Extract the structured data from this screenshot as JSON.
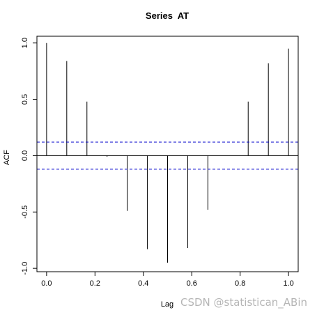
{
  "chart_data": {
    "type": "bar",
    "title": "Series  AT",
    "xlabel": "Lag",
    "ylabel": "ACF",
    "xlim": [
      -0.04,
      1.04
    ],
    "ylim": [
      -1.03,
      1.06
    ],
    "x_ticks": [
      0.0,
      0.2,
      0.4,
      0.6,
      0.8,
      1.0
    ],
    "x_tick_labels": [
      "0.0",
      "0.2",
      "0.4",
      "0.6",
      "0.8",
      "1.0"
    ],
    "y_ticks": [
      1.0,
      0.5,
      0.0,
      -0.5,
      -1.0
    ],
    "y_tick_labels": [
      "1.0",
      "0.5",
      "0.0",
      "-0.5",
      "-1.0"
    ],
    "lags": [
      0.0,
      0.0833,
      0.1667,
      0.25,
      0.3333,
      0.4167,
      0.5,
      0.5833,
      0.6667,
      0.75,
      0.8333,
      0.9167,
      1.0
    ],
    "acf": [
      1.0,
      0.84,
      0.48,
      -0.01,
      -0.49,
      -0.83,
      -0.95,
      -0.82,
      -0.48,
      0.0,
      0.48,
      0.82,
      0.95
    ],
    "confidence_bound": 0.12,
    "grid": false,
    "colors": {
      "spike": "#000000",
      "confidence": "#0000cc",
      "axis": "#000000"
    }
  },
  "watermark": "CSDN @statistican_ABin"
}
